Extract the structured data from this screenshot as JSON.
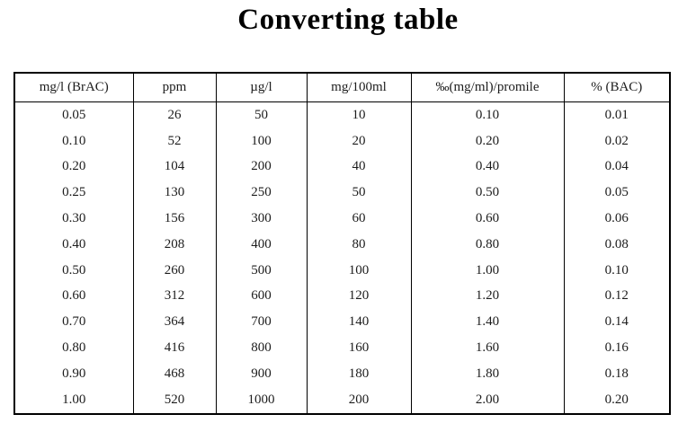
{
  "title": "Converting table",
  "table": {
    "headers": [
      "mg/l (BrAC)",
      "ppm",
      "µg/l",
      "mg/100ml",
      "‰(mg/ml)/promile",
      "% (BAC)"
    ],
    "rows": [
      [
        "0.05",
        "26",
        "50",
        "10",
        "0.10",
        "0.01"
      ],
      [
        "0.10",
        "52",
        "100",
        "20",
        "0.20",
        "0.02"
      ],
      [
        "0.20",
        "104",
        "200",
        "40",
        "0.40",
        "0.04"
      ],
      [
        "0.25",
        "130",
        "250",
        "50",
        "0.50",
        "0.05"
      ],
      [
        "0.30",
        "156",
        "300",
        "60",
        "0.60",
        "0.06"
      ],
      [
        "0.40",
        "208",
        "400",
        "80",
        "0.80",
        "0.08"
      ],
      [
        "0.50",
        "260",
        "500",
        "100",
        "1.00",
        "0.10"
      ],
      [
        "0.60",
        "312",
        "600",
        "120",
        "1.20",
        "0.12"
      ],
      [
        "0.70",
        "364",
        "700",
        "140",
        "1.40",
        "0.14"
      ],
      [
        "0.80",
        "416",
        "800",
        "160",
        "1.60",
        "0.16"
      ],
      [
        "0.90",
        "468",
        "900",
        "180",
        "1.80",
        "0.18"
      ],
      [
        "1.00",
        "520",
        "1000",
        "200",
        "2.00",
        "0.20"
      ]
    ]
  }
}
